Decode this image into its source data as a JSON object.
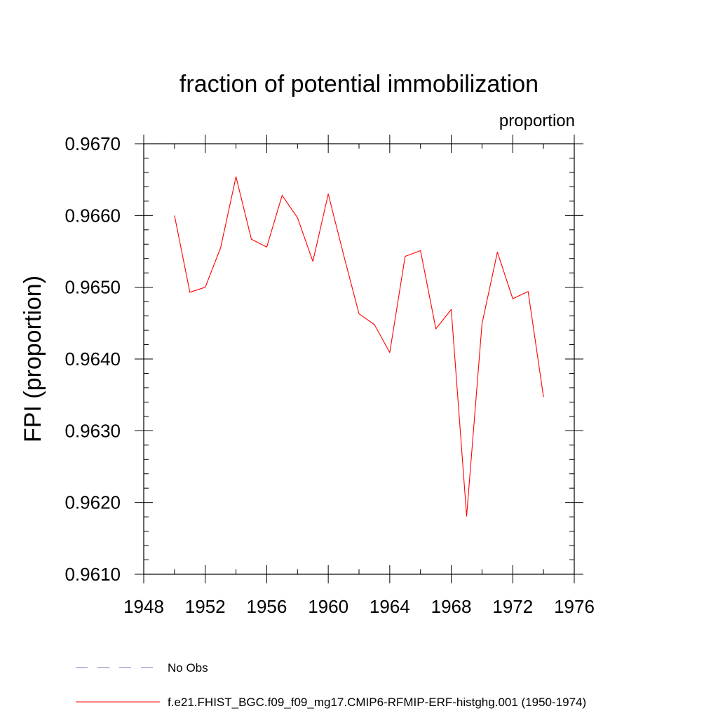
{
  "chart_data": {
    "type": "line",
    "title": "fraction of potential immobilization",
    "units": "proportion",
    "xlabel": "",
    "ylabel": "FPI  (proportion)",
    "xlim": [
      1948,
      1976
    ],
    "ylim": [
      0.961,
      0.967
    ],
    "xticks": [
      1948,
      1952,
      1956,
      1960,
      1964,
      1968,
      1972,
      1976
    ],
    "yticks": [
      0.961,
      0.962,
      0.963,
      0.964,
      0.965,
      0.966,
      0.967
    ],
    "ytick_labels": [
      "0.9610",
      "0.9620",
      "0.9630",
      "0.9640",
      "0.9650",
      "0.9660",
      "0.9670"
    ],
    "x": [
      1950,
      1951,
      1952,
      1953,
      1954,
      1955,
      1956,
      1957,
      1958,
      1959,
      1960,
      1961,
      1962,
      1963,
      1964,
      1965,
      1966,
      1967,
      1968,
      1969,
      1970,
      1971,
      1972,
      1973,
      1974
    ],
    "series": [
      {
        "name": "f.e21.FHIST_BGC.f09_f09_mg17.CMIP6-RFMIP-ERF-histghg.001 (1950-1974)",
        "color": "#ff0000",
        "style": "solid",
        "values": [
          0.966,
          0.96493,
          0.965,
          0.96555,
          0.96654,
          0.96567,
          0.96556,
          0.96628,
          0.96597,
          0.96536,
          0.9663,
          0.96545,
          0.96463,
          0.96448,
          0.96409,
          0.96543,
          0.96551,
          0.96442,
          0.96469,
          0.96181,
          0.96449,
          0.96549,
          0.96484,
          0.96494,
          0.96347
        ]
      }
    ],
    "legend": [
      {
        "label": "No Obs",
        "color": "#7b6fb8",
        "style": "dashed"
      },
      {
        "label": "f.e21.FHIST_BGC.f09_f09_mg17.CMIP6-RFMIP-ERF-histghg.001 (1950-1974)",
        "color": "#ff0000",
        "style": "solid"
      }
    ],
    "legend_position": "bottom-left",
    "grid": false
  }
}
